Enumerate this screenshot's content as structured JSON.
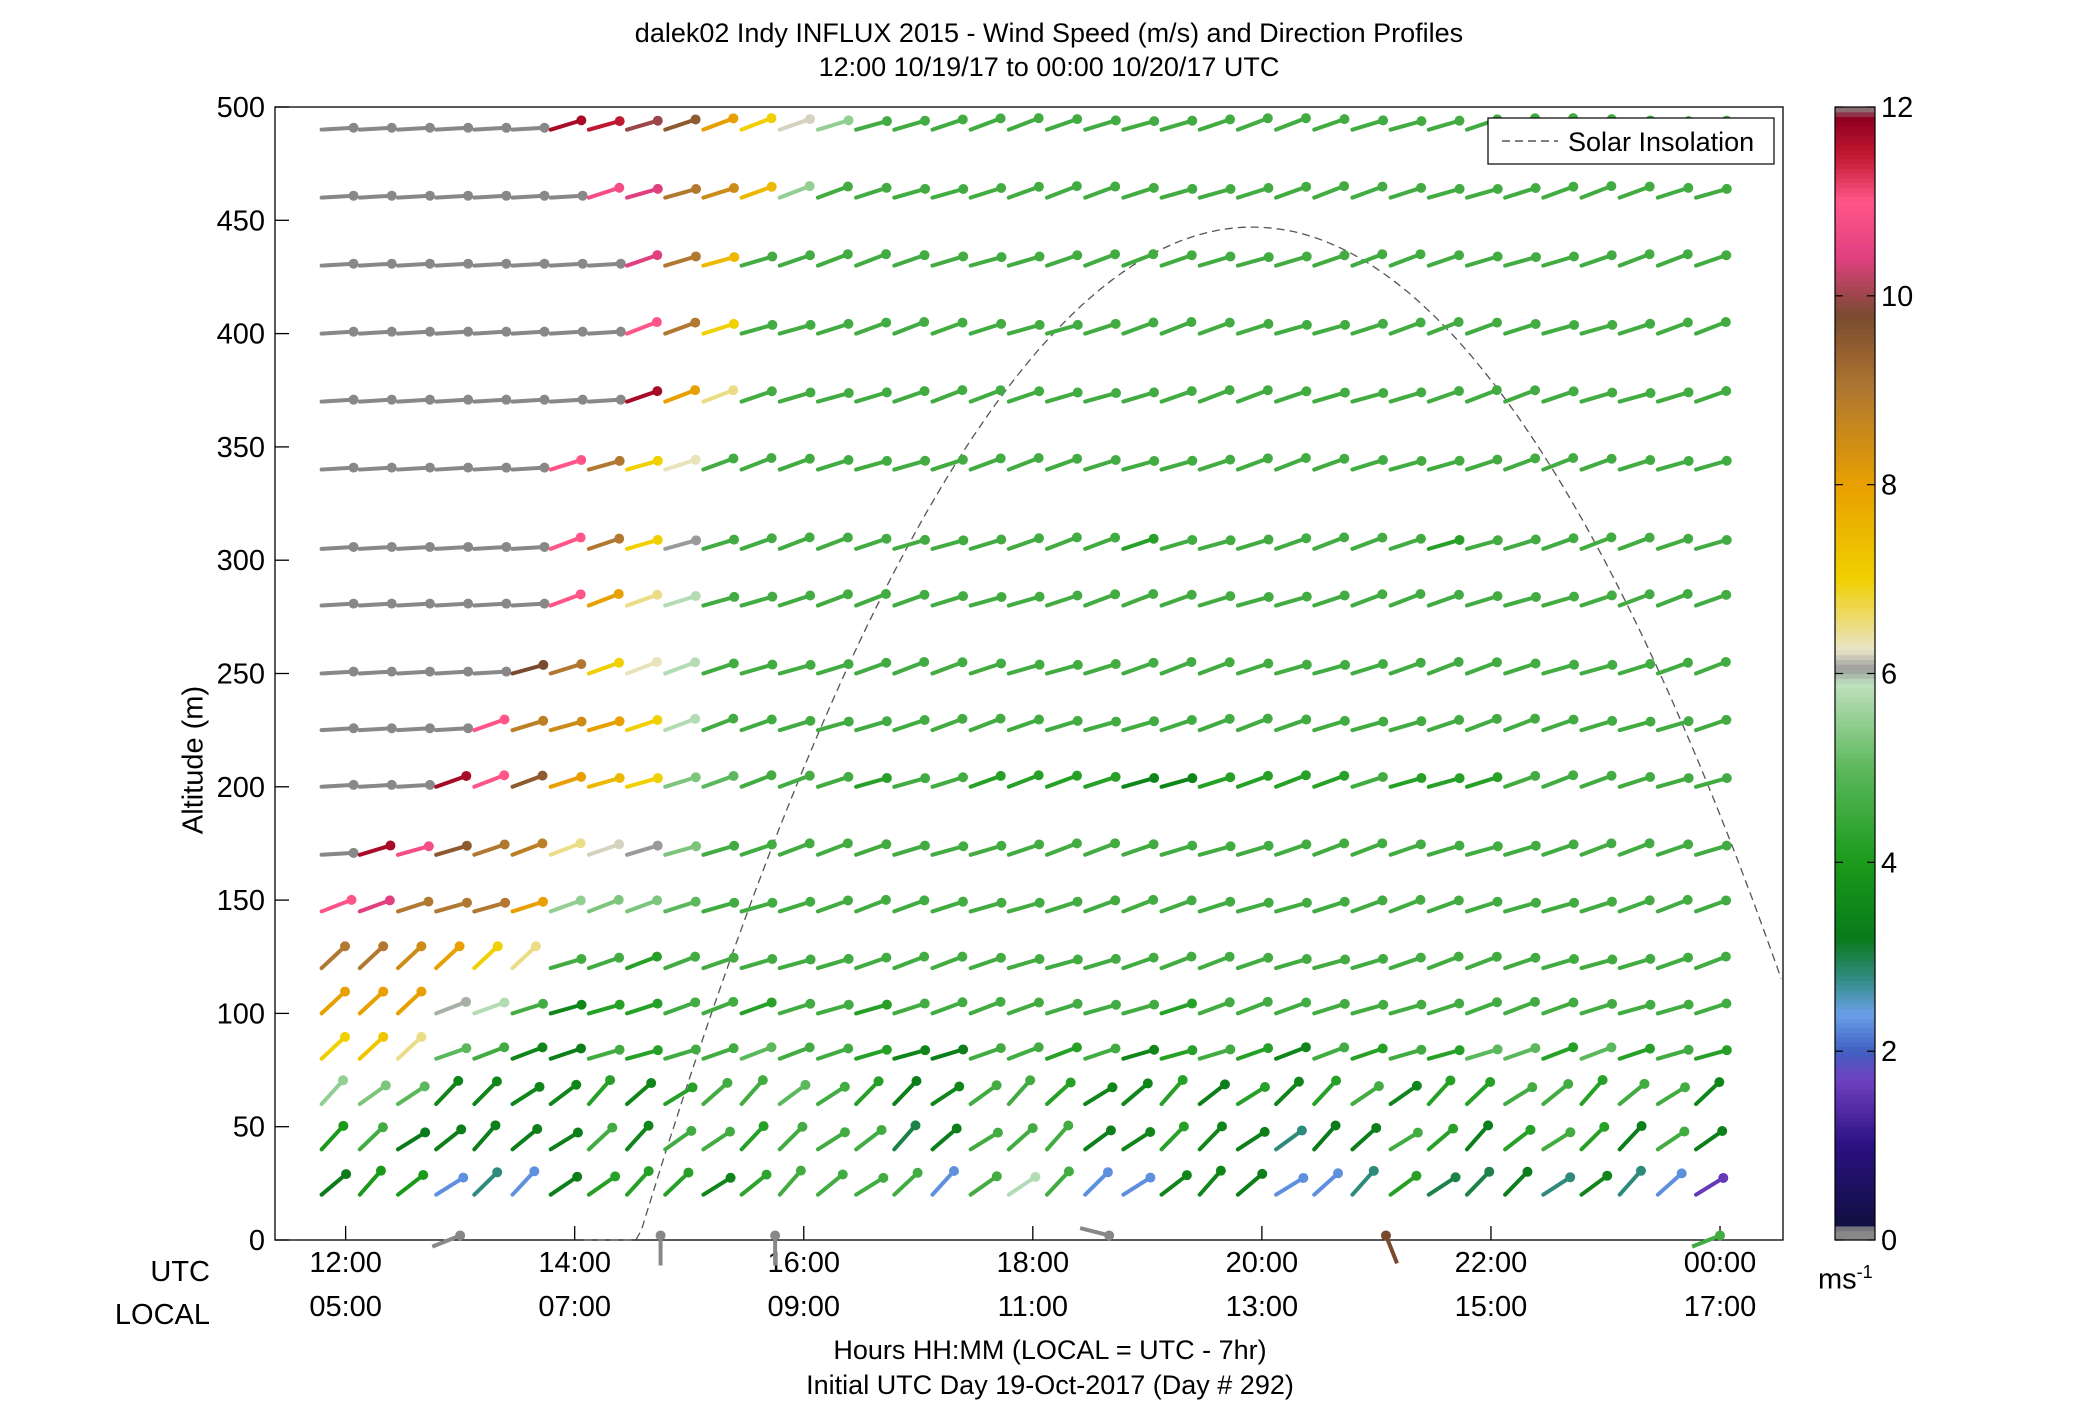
{
  "chart_data": {
    "type": "wind_barbs",
    "title": "dalek02 Indy INFLUX 2015 - Wind Speed (m/s) and Direction Profiles",
    "subtitle": "12:00 10/19/17 to 00:00 10/20/17  UTC",
    "ylabel": "Altitude (m)",
    "ylim": [
      0,
      500
    ],
    "yticks": [
      0,
      50,
      100,
      150,
      200,
      250,
      300,
      350,
      400,
      450,
      500
    ],
    "xlim": [
      "11:23",
      "00:33"
    ],
    "x_row_labels": {
      "utc": "UTC",
      "local": "LOCAL"
    },
    "xticks_utc": [
      "12:00",
      "14:00",
      "16:00",
      "18:00",
      "20:00",
      "22:00",
      "00:00"
    ],
    "xticks_local": [
      "05:00",
      "07:00",
      "09:00",
      "11:00",
      "13:00",
      "15:00",
      "17:00"
    ],
    "xlabel": "Hours HH:MM  (LOCAL = UTC - 7hr)",
    "xlabel2": "Initial UTC Day 19-Oct-2017 (Day # 292)",
    "legend": {
      "entry": "Solar Insolation",
      "location": "top-right",
      "style": "dashed",
      "color": "#555555"
    },
    "colorbar": {
      "min": 0,
      "max": 12,
      "ticks": [
        0,
        2,
        4,
        6,
        8,
        10,
        12
      ],
      "unit_label": "ms",
      "unit_exponent": "-1",
      "stops": [
        {
          "v": 0.0,
          "c": "#888888"
        },
        {
          "v": 0.12,
          "c": "#888888"
        },
        {
          "v": 0.15,
          "c": "#101040"
        },
        {
          "v": 1.0,
          "c": "#2a1080"
        },
        {
          "v": 1.7,
          "c": "#7040c0"
        },
        {
          "v": 2.0,
          "c": "#4060c0"
        },
        {
          "v": 2.4,
          "c": "#6aa0e8"
        },
        {
          "v": 2.8,
          "c": "#2e8a7a"
        },
        {
          "v": 3.2,
          "c": "#0a7a1a"
        },
        {
          "v": 4.0,
          "c": "#1a9a1a"
        },
        {
          "v": 5.0,
          "c": "#5cb85c"
        },
        {
          "v": 5.9,
          "c": "#bfe0bf"
        },
        {
          "v": 6.05,
          "c": "#9a9a9a"
        },
        {
          "v": 6.25,
          "c": "#e8e4c8"
        },
        {
          "v": 7.0,
          "c": "#f0d000"
        },
        {
          "v": 8.0,
          "c": "#e8a000"
        },
        {
          "v": 9.0,
          "c": "#b07830"
        },
        {
          "v": 9.8,
          "c": "#7a4a30"
        },
        {
          "v": 10.4,
          "c": "#e04080"
        },
        {
          "v": 11.0,
          "c": "#ff5588"
        },
        {
          "v": 11.5,
          "c": "#c01830"
        },
        {
          "v": 11.88,
          "c": "#900020"
        },
        {
          "v": 12.0,
          "c": "#888888"
        }
      ]
    },
    "solar_insolation_relative": {
      "start": "14:05",
      "peak": "19:55",
      "peak_altitude": 447,
      "end": "00:33",
      "end_altitude": 113
    },
    "barb_grid": {
      "times_utc": [
        "12:00",
        "12:20",
        "12:40",
        "13:00",
        "13:20",
        "13:40",
        "14:00",
        "14:20",
        "14:40",
        "15:00",
        "15:20",
        "15:40",
        "16:00",
        "16:20",
        "16:40",
        "17:00",
        "17:20",
        "17:40",
        "18:00",
        "18:20",
        "18:40",
        "19:00",
        "19:20",
        "19:40",
        "20:00",
        "20:20",
        "20:40",
        "21:00",
        "21:20",
        "21:40",
        "22:00",
        "22:20",
        "22:40",
        "23:00",
        "23:20",
        "23:40",
        "00:00"
      ],
      "altitudes_m": [
        20,
        40,
        60,
        80,
        100,
        120,
        145,
        170,
        200,
        225,
        250,
        280,
        305,
        340,
        370,
        400,
        430,
        460,
        490
      ],
      "speeds_ms": [
        [
          3.2,
          4.0,
          4.0,
          2.3,
          2.8,
          2.3,
          3.3,
          4.2,
          4.2,
          4.2,
          3.5,
          4.3,
          4.6,
          4.6,
          4.6,
          4.6,
          2.3,
          4.6,
          5.8,
          4.6,
          2.3,
          2.3,
          3.5,
          3.5,
          3.3,
          2.3,
          2.3,
          2.8,
          4.2,
          3.0,
          3.0,
          3.3,
          2.8,
          3.5,
          2.8,
          2.3,
          1.6
        ],
        [
          4.0,
          4.6,
          3.2,
          3.3,
          3.3,
          3.3,
          3.3,
          4.6,
          3.5,
          4.6,
          4.6,
          4.2,
          4.6,
          4.6,
          4.6,
          3.0,
          3.3,
          4.6,
          4.6,
          4.6,
          3.3,
          3.5,
          4.2,
          3.5,
          3.3,
          2.8,
          3.2,
          3.3,
          4.6,
          4.2,
          3.3,
          4.2,
          4.6,
          4.2,
          3.3,
          4.6,
          3.3
        ],
        [
          5.5,
          5.3,
          5.0,
          3.5,
          3.5,
          3.5,
          3.5,
          4.2,
          3.5,
          4.2,
          4.6,
          4.6,
          5.0,
          4.6,
          4.2,
          3.3,
          3.5,
          4.6,
          4.6,
          4.2,
          3.5,
          3.5,
          4.2,
          3.3,
          4.2,
          3.5,
          4.2,
          4.6,
          3.5,
          4.2,
          4.2,
          4.6,
          4.6,
          4.2,
          4.6,
          4.6,
          3.5
        ],
        [
          7.0,
          7.2,
          6.5,
          5.0,
          4.6,
          3.5,
          3.3,
          4.6,
          4.2,
          4.6,
          4.6,
          5.0,
          4.6,
          4.6,
          4.2,
          3.5,
          3.3,
          4.6,
          4.6,
          4.2,
          4.6,
          3.5,
          4.2,
          4.6,
          4.2,
          3.5,
          4.6,
          4.2,
          4.6,
          4.2,
          5.0,
          5.0,
          4.2,
          5.0,
          4.2,
          4.6,
          4.2
        ],
        [
          8.0,
          8.0,
          8.0,
          6.0,
          5.8,
          4.6,
          3.5,
          4.2,
          4.2,
          4.6,
          4.6,
          4.2,
          4.6,
          4.6,
          4.2,
          4.6,
          4.6,
          4.6,
          4.6,
          4.6,
          4.6,
          4.6,
          4.2,
          4.6,
          4.6,
          4.6,
          4.6,
          4.6,
          4.6,
          4.6,
          4.6,
          4.6,
          4.6,
          4.6,
          4.6,
          4.6,
          4.6
        ],
        [
          9.0,
          9.0,
          8.5,
          8.0,
          7.0,
          6.5,
          4.6,
          4.6,
          4.2,
          4.6,
          4.6,
          4.6,
          4.6,
          4.6,
          4.6,
          4.6,
          4.6,
          4.6,
          4.6,
          4.6,
          4.6,
          4.6,
          4.6,
          4.6,
          4.6,
          4.6,
          4.6,
          4.6,
          4.6,
          4.6,
          4.6,
          4.6,
          4.6,
          4.6,
          4.6,
          4.6,
          4.6
        ],
        [
          11.0,
          10.4,
          9.0,
          9.0,
          9.0,
          8.0,
          5.5,
          5.3,
          5.3,
          5.0,
          4.6,
          4.6,
          4.6,
          4.6,
          4.6,
          4.6,
          4.6,
          4.6,
          4.6,
          4.6,
          4.6,
          4.6,
          4.6,
          4.6,
          4.6,
          4.6,
          4.6,
          4.6,
          4.6,
          4.6,
          4.6,
          4.6,
          4.6,
          4.6,
          4.6,
          4.6,
          4.6
        ],
        [
          0.05,
          11.7,
          10.8,
          9.5,
          9.0,
          8.8,
          6.5,
          6.2,
          6.05,
          5.3,
          4.6,
          4.6,
          4.6,
          4.6,
          4.6,
          4.6,
          4.6,
          4.6,
          4.6,
          4.6,
          4.6,
          4.6,
          4.6,
          4.6,
          4.6,
          4.6,
          4.6,
          4.6,
          4.6,
          4.6,
          4.6,
          4.6,
          4.6,
          4.6,
          4.6,
          4.6,
          4.6
        ],
        [
          0.05,
          0.05,
          0.05,
          11.7,
          11.0,
          9.5,
          8.0,
          7.5,
          7.0,
          5.3,
          5.0,
          4.6,
          4.6,
          4.6,
          4.2,
          4.6,
          4.6,
          4.2,
          4.2,
          4.2,
          4.2,
          3.5,
          3.5,
          4.2,
          4.2,
          4.2,
          4.2,
          4.6,
          4.2,
          4.2,
          4.2,
          4.6,
          4.6,
          4.6,
          4.6,
          4.6,
          4.6
        ],
        [
          0.05,
          0.05,
          0.05,
          0.05,
          11.0,
          8.8,
          8.5,
          8.0,
          7.0,
          5.8,
          4.6,
          4.6,
          4.6,
          4.6,
          4.6,
          4.6,
          4.6,
          4.6,
          4.6,
          4.6,
          4.6,
          4.6,
          4.6,
          4.6,
          4.6,
          4.6,
          4.6,
          4.6,
          4.6,
          4.6,
          4.6,
          4.6,
          4.6,
          4.6,
          4.6,
          4.6,
          4.6
        ],
        [
          0.05,
          0.05,
          0.05,
          0.05,
          0.05,
          9.8,
          9.0,
          7.0,
          6.3,
          5.8,
          4.6,
          4.6,
          4.6,
          4.6,
          4.6,
          4.6,
          4.6,
          4.6,
          4.6,
          4.6,
          4.6,
          4.6,
          4.6,
          4.6,
          4.6,
          4.6,
          4.6,
          4.6,
          4.6,
          4.6,
          4.6,
          4.6,
          4.6,
          4.6,
          4.6,
          4.6,
          4.6
        ],
        [
          0.05,
          0.05,
          0.05,
          0.05,
          0.05,
          0.05,
          11.0,
          8.0,
          6.5,
          5.8,
          4.6,
          4.6,
          4.6,
          4.6,
          4.6,
          4.6,
          4.6,
          4.6,
          4.6,
          4.6,
          4.6,
          4.6,
          4.6,
          4.6,
          4.6,
          4.6,
          4.6,
          4.6,
          4.6,
          4.6,
          4.6,
          4.6,
          4.6,
          4.6,
          4.6,
          4.6,
          4.6
        ],
        [
          0.05,
          0.05,
          0.05,
          0.05,
          0.05,
          0.05,
          11.0,
          9.0,
          7.0,
          6.05,
          4.6,
          4.6,
          4.6,
          4.6,
          4.6,
          4.6,
          4.6,
          4.6,
          4.6,
          4.6,
          4.6,
          4.2,
          4.6,
          4.6,
          4.6,
          4.6,
          4.6,
          4.6,
          4.6,
          4.2,
          4.6,
          4.6,
          4.6,
          4.6,
          4.6,
          4.6,
          4.6
        ],
        [
          0.05,
          0.05,
          0.05,
          0.05,
          0.05,
          0.05,
          11.0,
          9.0,
          7.0,
          6.3,
          4.6,
          4.6,
          4.6,
          4.6,
          4.6,
          4.6,
          4.6,
          4.6,
          4.6,
          4.6,
          4.6,
          4.6,
          4.6,
          4.6,
          4.6,
          4.6,
          4.6,
          4.6,
          4.6,
          4.6,
          4.6,
          4.6,
          4.6,
          4.6,
          4.6,
          4.6,
          4.6
        ],
        [
          0.05,
          0.05,
          0.05,
          0.05,
          0.05,
          0.05,
          0.05,
          0.05,
          11.7,
          8.0,
          6.5,
          4.6,
          4.6,
          4.6,
          4.6,
          4.6,
          4.6,
          4.6,
          4.6,
          4.6,
          4.6,
          4.6,
          4.6,
          4.6,
          4.6,
          4.6,
          4.6,
          4.6,
          4.6,
          4.6,
          4.6,
          4.6,
          4.6,
          4.6,
          4.6,
          4.6,
          4.6
        ],
        [
          0.05,
          0.05,
          0.05,
          0.05,
          0.05,
          0.05,
          0.05,
          0.05,
          11.0,
          9.0,
          7.0,
          4.6,
          4.6,
          4.6,
          4.6,
          4.6,
          4.6,
          4.6,
          4.6,
          4.6,
          4.6,
          4.6,
          4.6,
          4.6,
          4.6,
          4.6,
          4.6,
          4.6,
          4.6,
          4.6,
          4.6,
          4.6,
          4.6,
          4.6,
          4.6,
          4.6,
          4.6
        ],
        [
          0.05,
          0.05,
          0.05,
          0.05,
          0.05,
          0.05,
          0.05,
          0.05,
          10.4,
          9.0,
          7.5,
          4.6,
          4.6,
          4.6,
          4.6,
          4.6,
          4.6,
          4.6,
          4.6,
          4.6,
          4.6,
          4.6,
          4.6,
          4.6,
          4.6,
          4.6,
          4.6,
          4.6,
          4.6,
          4.6,
          4.6,
          4.6,
          4.6,
          4.6,
          4.6,
          4.6,
          4.6
        ],
        [
          0.05,
          0.05,
          0.05,
          0.05,
          0.05,
          0.05,
          0.05,
          10.8,
          10.4,
          9.0,
          8.5,
          7.5,
          5.5,
          4.6,
          4.6,
          4.6,
          4.6,
          4.6,
          4.6,
          4.6,
          4.6,
          4.6,
          4.6,
          4.6,
          4.6,
          4.6,
          4.6,
          4.6,
          4.6,
          4.6,
          4.6,
          4.6,
          4.6,
          4.6,
          4.6,
          4.6,
          4.6
        ],
        [
          0.05,
          0.05,
          0.05,
          0.05,
          0.05,
          0.05,
          11.7,
          11.5,
          10.0,
          9.5,
          8.0,
          7.0,
          6.2,
          5.5,
          4.6,
          4.6,
          4.6,
          4.6,
          4.6,
          4.6,
          4.6,
          4.6,
          4.6,
          4.6,
          4.6,
          4.6,
          4.6,
          4.6,
          4.6,
          4.6,
          4.6,
          4.6,
          4.6,
          4.6,
          4.6,
          4.6,
          4.6
        ]
      ]
    },
    "surface_barbs": [
      {
        "time": "13:00",
        "altitude": 2,
        "speed": 0.05,
        "toward": "ENE"
      },
      {
        "time": "14:45",
        "altitude": 2,
        "speed": 0.05,
        "toward": "N"
      },
      {
        "time": "15:45",
        "altitude": 2,
        "speed": 0.05,
        "toward": "N"
      },
      {
        "time": "18:40",
        "altitude": 2,
        "speed": 0.05,
        "toward": "ESE"
      },
      {
        "time": "21:05",
        "altitude": 2,
        "speed": 9.8,
        "toward": "NNW"
      },
      {
        "time": "00:00",
        "altitude": 2,
        "speed": 4.6,
        "toward": "ENE"
      }
    ]
  }
}
